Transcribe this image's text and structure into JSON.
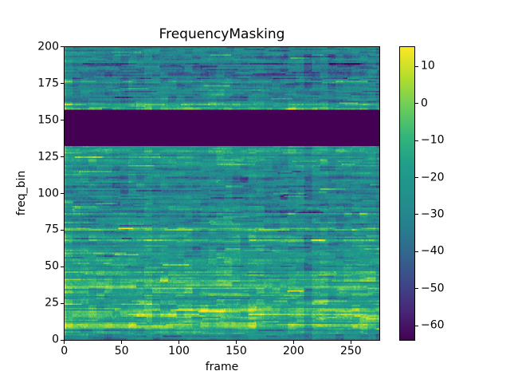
{
  "chart_data": {
    "type": "heatmap",
    "title": "FrequencyMasking",
    "xlabel": "frame",
    "ylabel": "freq_bin",
    "x_range": [
      -0.5,
      275.5
    ],
    "y_range": [
      -0.5,
      200.5
    ],
    "n_frames": 276,
    "n_freq_bins": 201,
    "x_ticks": [
      0,
      50,
      100,
      150,
      200,
      250
    ],
    "y_ticks": [
      0,
      25,
      50,
      75,
      100,
      125,
      150,
      175,
      200
    ],
    "colormap": "viridis",
    "colormap_stops": [
      "#440154",
      "#482878",
      "#3e4989",
      "#31688e",
      "#26828e",
      "#21918c",
      "#1f9e89",
      "#35b779",
      "#6ece58",
      "#b5de2b",
      "#fde725"
    ],
    "vmin": -64.0,
    "vmax": 15.4,
    "colorbar_ticks": [
      {
        "value": 10,
        "label": "10"
      },
      {
        "value": 0,
        "label": "0"
      },
      {
        "value": -10,
        "label": "−10"
      },
      {
        "value": -20,
        "label": "−20"
      },
      {
        "value": -30,
        "label": "−30"
      },
      {
        "value": -40,
        "label": "−40"
      },
      {
        "value": -50,
        "label": "−50"
      },
      {
        "value": -60,
        "label": "−60"
      }
    ],
    "masked_band": {
      "freq_bin_start": 133,
      "freq_bin_end": 157,
      "value": -64.0
    },
    "background_level": -30,
    "freq_profile": [
      {
        "from": 0,
        "to": 3,
        "level": -26
      },
      {
        "from": 4,
        "to": 7,
        "level": -14
      },
      {
        "from": 8,
        "to": 11,
        "level": -4
      },
      {
        "from": 12,
        "to": 15,
        "level": -12
      },
      {
        "from": 16,
        "to": 21,
        "level": -6
      },
      {
        "from": 22,
        "to": 26,
        "level": -13
      },
      {
        "from": 27,
        "to": 34,
        "level": -18
      },
      {
        "from": 35,
        "to": 41,
        "level": -8
      },
      {
        "from": 42,
        "to": 49,
        "level": -17
      },
      {
        "from": 50,
        "to": 59,
        "level": -20
      },
      {
        "from": 60,
        "to": 66,
        "level": -21
      },
      {
        "from": 67,
        "to": 68,
        "level": -11
      },
      {
        "from": 69,
        "to": 74,
        "level": -23
      },
      {
        "from": 75,
        "to": 76,
        "level": -14
      },
      {
        "from": 77,
        "to": 89,
        "level": -27
      },
      {
        "from": 90,
        "to": 101,
        "level": -30
      },
      {
        "from": 102,
        "to": 112,
        "level": -29
      },
      {
        "from": 113,
        "to": 119,
        "level": -27
      },
      {
        "from": 120,
        "to": 121,
        "level": -20
      },
      {
        "from": 122,
        "to": 127,
        "level": -21
      },
      {
        "from": 128,
        "to": 131,
        "level": -17
      },
      {
        "from": 132,
        "to": 132,
        "level": -22
      },
      {
        "from": 158,
        "to": 162,
        "level": -18
      },
      {
        "from": 163,
        "to": 172,
        "level": -30
      },
      {
        "from": 173,
        "to": 183,
        "level": -33
      },
      {
        "from": 184,
        "to": 194,
        "level": -35
      },
      {
        "from": 195,
        "to": 200,
        "level": -28
      }
    ],
    "synthesis": {
      "seed": 11,
      "row_jitter": 4.5,
      "segment_noise": 4.5,
      "block_noise": 3.5,
      "col_noise": 2.0,
      "fine_noise": 2.5,
      "block_w": 7,
      "block_h": 4,
      "sparkle_prob": 0.02,
      "dip_prob": 0.08,
      "first_col_boost": 11
    }
  }
}
